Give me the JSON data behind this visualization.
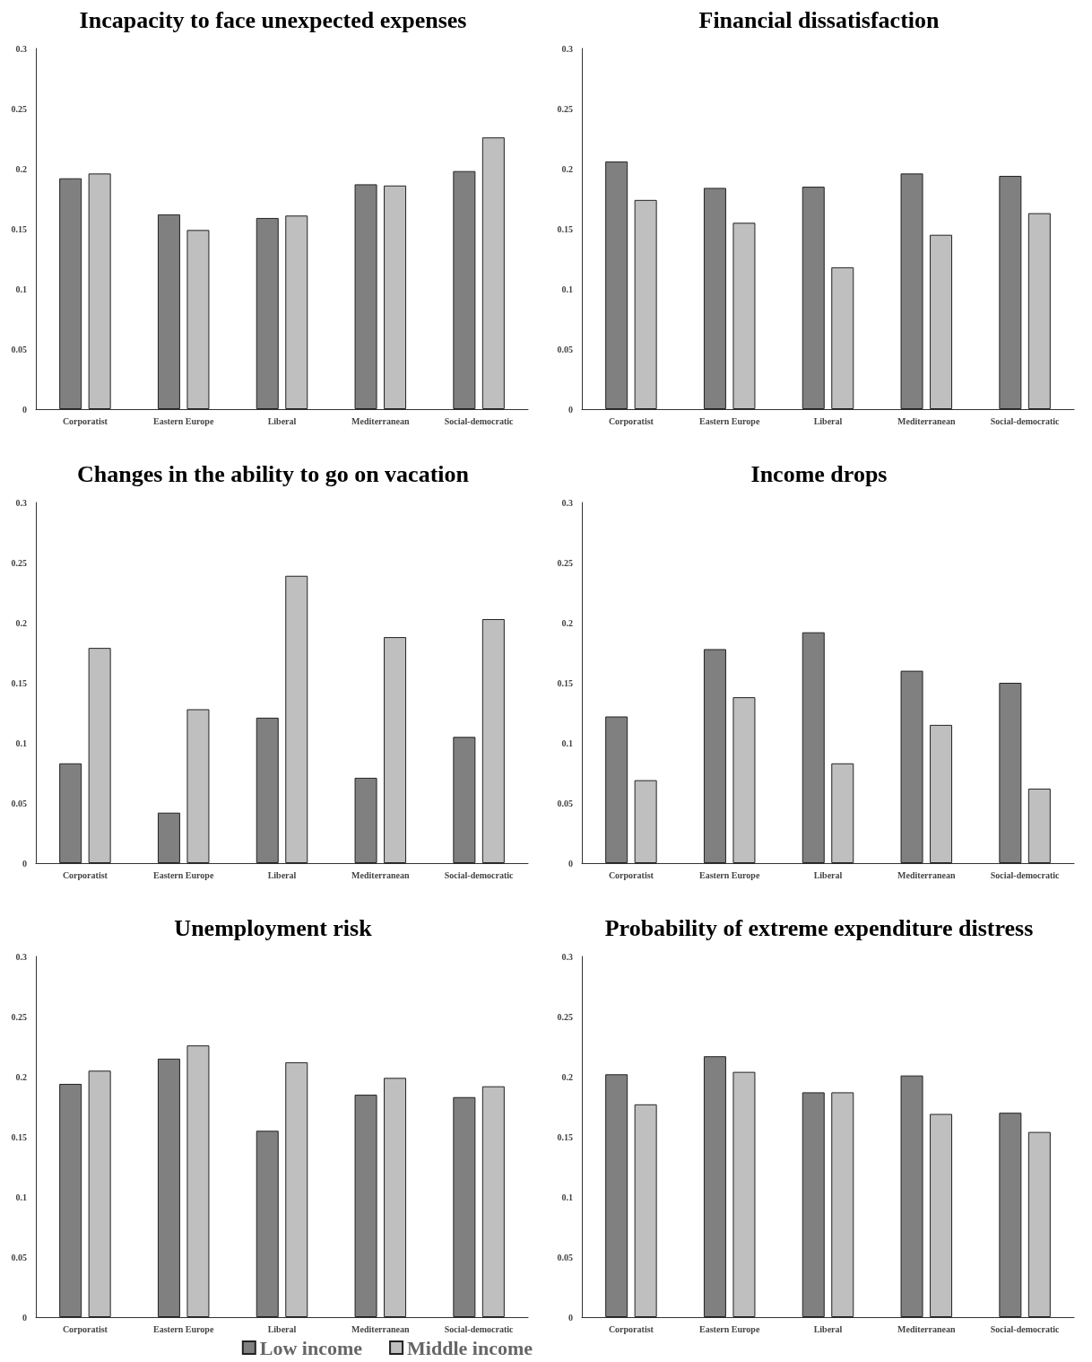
{
  "chart_data": [
    {
      "type": "bar",
      "title": "Incapacity to face unexpected expenses",
      "categories": [
        "Corporatist",
        "Eastern Europe",
        "Liberal",
        "Mediterranean",
        "Social-democratic"
      ],
      "series": [
        {
          "color": "#808080",
          "values": [
            0.192,
            0.162,
            0.159,
            0.187,
            0.198
          ]
        },
        {
          "color": "#bfbfbf",
          "values": [
            0.196,
            0.149,
            0.161,
            0.186,
            0.226
          ]
        }
      ],
      "ylim": [
        0,
        0.3
      ],
      "yticks": [
        0,
        0.05,
        0.1,
        0.15,
        0.2,
        0.25,
        0.3
      ],
      "grid": false,
      "legend": false
    },
    {
      "type": "bar",
      "title": "Financial dissatisfaction",
      "categories": [
        "Corporatist",
        "Eastern Europe",
        "Liberal",
        "Mediterranean",
        "Social-democratic"
      ],
      "series": [
        {
          "color": "#808080",
          "values": [
            0.206,
            0.184,
            0.185,
            0.196,
            0.194
          ]
        },
        {
          "color": "#bfbfbf",
          "values": [
            0.174,
            0.155,
            0.118,
            0.145,
            0.163
          ]
        }
      ],
      "ylim": [
        0,
        0.3
      ],
      "yticks": [
        0,
        0.05,
        0.1,
        0.15,
        0.2,
        0.25,
        0.3
      ],
      "grid": false,
      "legend": false
    },
    {
      "type": "bar",
      "title": "Changes in the ability to go on vacation",
      "categories": [
        "Corporatist",
        "Eastern Europe",
        "Liberal",
        "Mediterranean",
        "Social-democratic"
      ],
      "series": [
        {
          "color": "#808080",
          "values": [
            0.083,
            0.042,
            0.121,
            0.071,
            0.105
          ]
        },
        {
          "color": "#bfbfbf",
          "values": [
            0.179,
            0.128,
            0.239,
            0.188,
            0.203
          ]
        }
      ],
      "ylim": [
        0,
        0.3
      ],
      "yticks": [
        0,
        0.05,
        0.1,
        0.15,
        0.2,
        0.25,
        0.3
      ],
      "grid": false,
      "legend": false
    },
    {
      "type": "bar",
      "title": "Income drops",
      "categories": [
        "Corporatist",
        "Eastern Europe",
        "Liberal",
        "Mediterranean",
        "Social-democratic"
      ],
      "series": [
        {
          "color": "#808080",
          "values": [
            0.122,
            0.178,
            0.192,
            0.16,
            0.15
          ]
        },
        {
          "color": "#bfbfbf",
          "values": [
            0.069,
            0.138,
            0.083,
            0.115,
            0.062
          ]
        }
      ],
      "ylim": [
        0,
        0.3
      ],
      "yticks": [
        0,
        0.05,
        0.1,
        0.15,
        0.2,
        0.25,
        0.3
      ],
      "grid": false,
      "legend": false
    },
    {
      "type": "bar",
      "title": "Unemployment risk",
      "categories": [
        "Corporatist",
        "Eastern Europe",
        "Liberal",
        "Mediterranean",
        "Social-democratic"
      ],
      "series": [
        {
          "name": "Low income",
          "color": "#808080",
          "values": [
            0.194,
            0.215,
            0.155,
            0.185,
            0.183
          ]
        },
        {
          "name": "Middle income",
          "color": "#bfbfbf",
          "values": [
            0.205,
            0.226,
            0.212,
            0.199,
            0.192
          ]
        }
      ],
      "ylim": [
        0,
        0.3
      ],
      "yticks": [
        0,
        0.05,
        0.1,
        0.15,
        0.2,
        0.25,
        0.3
      ],
      "grid": false,
      "legend": "bottom"
    },
    {
      "type": "bar",
      "title": "Probability of extreme expenditure distress",
      "categories": [
        "Corporatist",
        "Eastern Europe",
        "Liberal",
        "Mediterranean",
        "Social-democratic"
      ],
      "series": [
        {
          "color": "#808080",
          "values": [
            0.202,
            0.217,
            0.187,
            0.201,
            0.17
          ]
        },
        {
          "color": "#bfbfbf",
          "values": [
            0.177,
            0.204,
            0.187,
            0.169,
            0.154
          ]
        }
      ],
      "ylim": [
        0,
        0.3
      ],
      "yticks": [
        0,
        0.05,
        0.1,
        0.15,
        0.2,
        0.25,
        0.3
      ],
      "grid": false,
      "legend": false
    }
  ]
}
